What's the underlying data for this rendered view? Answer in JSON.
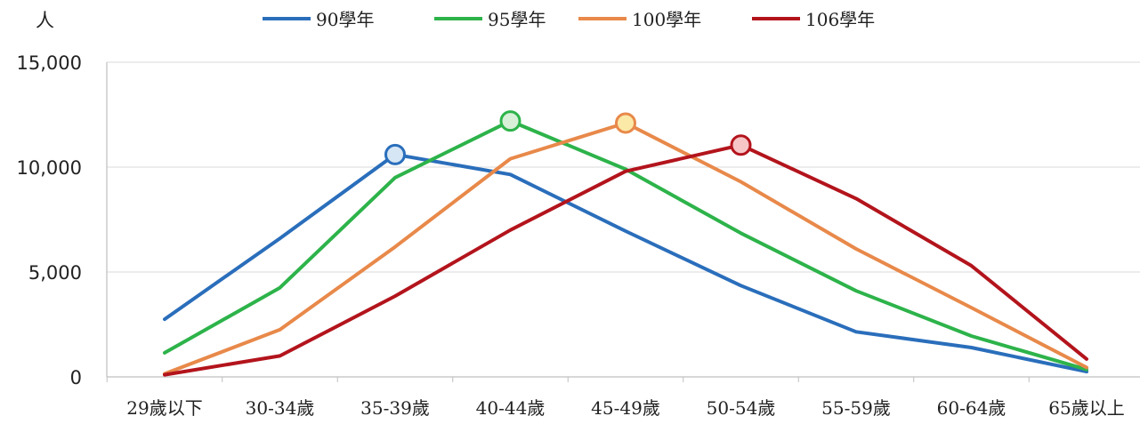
{
  "chart_data": {
    "type": "line",
    "ylabel": "人",
    "ylim": [
      0,
      15000
    ],
    "yticks": [
      "0",
      "5,000",
      "10,000",
      "15,000"
    ],
    "ytick_values": [
      0,
      5000,
      10000,
      15000
    ],
    "categories": [
      "29歲以下",
      "30-34歲",
      "35-39歲",
      "40-44歲",
      "45-49歲",
      "50-54歲",
      "55-59歲",
      "60-64歲",
      "65歲以上"
    ],
    "grid": true,
    "legend_position": "top",
    "series": [
      {
        "name": "90學年",
        "color": "#2a6ebb",
        "peak_fill": "#d6e6f5",
        "values": [
          2750,
          6600,
          10600,
          9650,
          6950,
          4350,
          2150,
          1400,
          250
        ],
        "peak_index": 2
      },
      {
        "name": "95學年",
        "color": "#2db34a",
        "peak_fill": "#d8f0d8",
        "values": [
          1150,
          4250,
          9500,
          12200,
          9900,
          6850,
          4100,
          1950,
          350
        ],
        "peak_index": 3
      },
      {
        "name": "100學年",
        "color": "#e8894a",
        "peak_fill": "#fbe9a8",
        "values": [
          150,
          2250,
          6200,
          10400,
          12100,
          9300,
          6100,
          3300,
          450
        ],
        "peak_index": 4
      },
      {
        "name": "106學年",
        "color": "#b3141c",
        "peak_fill": "#f7c6c6",
        "values": [
          100,
          1000,
          3850,
          7000,
          9800,
          11050,
          8500,
          5300,
          850
        ],
        "peak_index": 5
      }
    ]
  }
}
